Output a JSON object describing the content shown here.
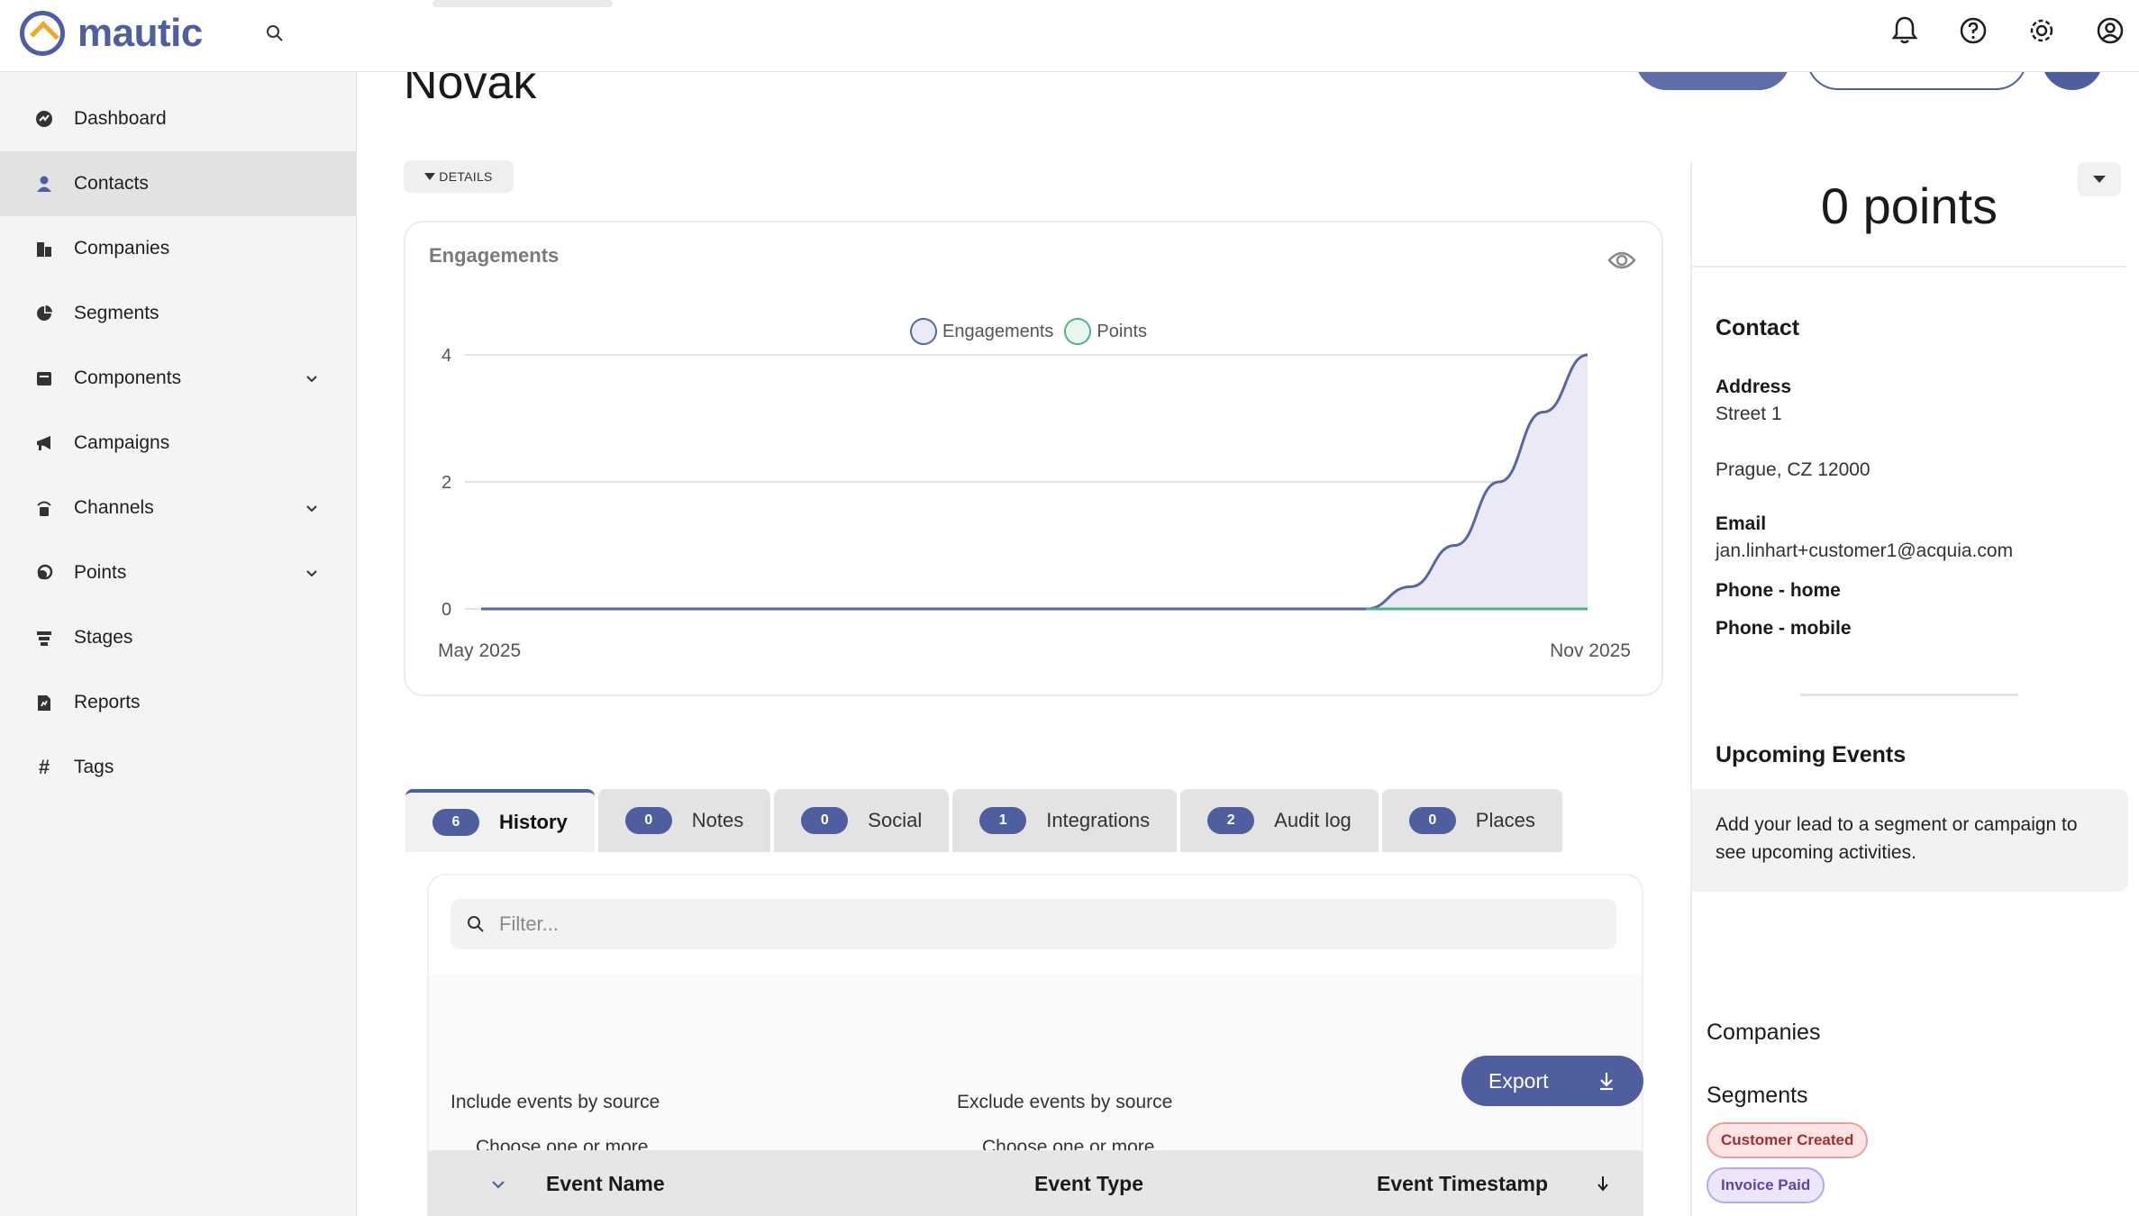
{
  "app": {
    "logo_text": "mautic"
  },
  "sidebar": {
    "items": [
      {
        "label": "Dashboard",
        "icon": "dashboard-icon"
      },
      {
        "label": "Contacts",
        "icon": "person-icon",
        "active": true
      },
      {
        "label": "Companies",
        "icon": "building-icon"
      },
      {
        "label": "Segments",
        "icon": "pie-icon"
      },
      {
        "label": "Components",
        "icon": "box-icon",
        "expandable": true
      },
      {
        "label": "Campaigns",
        "icon": "megaphone-icon"
      },
      {
        "label": "Channels",
        "icon": "broadcast-icon",
        "expandable": true
      },
      {
        "label": "Points",
        "icon": "coins-icon",
        "expandable": true
      },
      {
        "label": "Stages",
        "icon": "stages-icon"
      },
      {
        "label": "Reports",
        "icon": "report-icon"
      },
      {
        "label": "Tags",
        "icon": "hash-icon"
      }
    ]
  },
  "page": {
    "title": "Novak",
    "details_label": "DETAILS"
  },
  "engagements": {
    "title": "Engagements",
    "legend": [
      {
        "name": "Engagements",
        "color": "#5a669f"
      },
      {
        "name": "Points",
        "color": "#4fb18a"
      }
    ]
  },
  "chart_data": {
    "type": "line",
    "x_start_label": "May 2025",
    "x_end_label": "Nov 2025",
    "y_ticks": [
      "0",
      "2",
      "4"
    ],
    "ylim": [
      0,
      4
    ],
    "series": [
      {
        "name": "Engagements",
        "x": [
          0,
          0.8,
          0.84,
          0.88,
          0.92,
          0.96,
          1.0
        ],
        "values": [
          0,
          0,
          0.35,
          1.0,
          2.0,
          3.1,
          4.0
        ],
        "color": "#5a669f",
        "fill": "#e9eaf6"
      },
      {
        "name": "Points",
        "x": [
          0.8,
          1.0
        ],
        "values": [
          0,
          0
        ],
        "color": "#4fb18a"
      }
    ]
  },
  "tabs": [
    {
      "label": "History",
      "count": "6",
      "active": true
    },
    {
      "label": "Notes",
      "count": "0"
    },
    {
      "label": "Social",
      "count": "0"
    },
    {
      "label": "Integrations",
      "count": "1"
    },
    {
      "label": "Audit log",
      "count": "2"
    },
    {
      "label": "Places",
      "count": "0"
    }
  ],
  "filter": {
    "placeholder": "Filter...",
    "include_label": "Include events by source",
    "exclude_label": "Exclude events by source",
    "include_choose": "Choose one or more...",
    "exclude_choose": "Choose one or more...",
    "export_label": "Export"
  },
  "table": {
    "headers": [
      "Event Name",
      "Event Type",
      "Event Timestamp"
    ]
  },
  "contact_panel": {
    "points": "0 points",
    "contact_heading": "Contact",
    "address_label": "Address",
    "address_line1": "Street 1",
    "address_line2": "Prague, CZ 12000",
    "email_label": "Email",
    "email_value": "jan.linhart+customer1@acquia.com",
    "phone_home_label": "Phone - home",
    "phone_mobile_label": "Phone - mobile",
    "upcoming_heading": "Upcoming Events",
    "upcoming_text": "Add your lead to a segment or campaign to see upcoming activities.",
    "companies_heading": "Companies",
    "segments_heading": "Segments",
    "segments": [
      {
        "label": "Customer Created",
        "bg": "#fde3e3",
        "border": "#e8a0a0",
        "color": "#a33030"
      },
      {
        "label": "Invoice Paid",
        "bg": "#ece6fb",
        "border": "#b9a8e8",
        "color": "#5b45a8"
      }
    ]
  }
}
